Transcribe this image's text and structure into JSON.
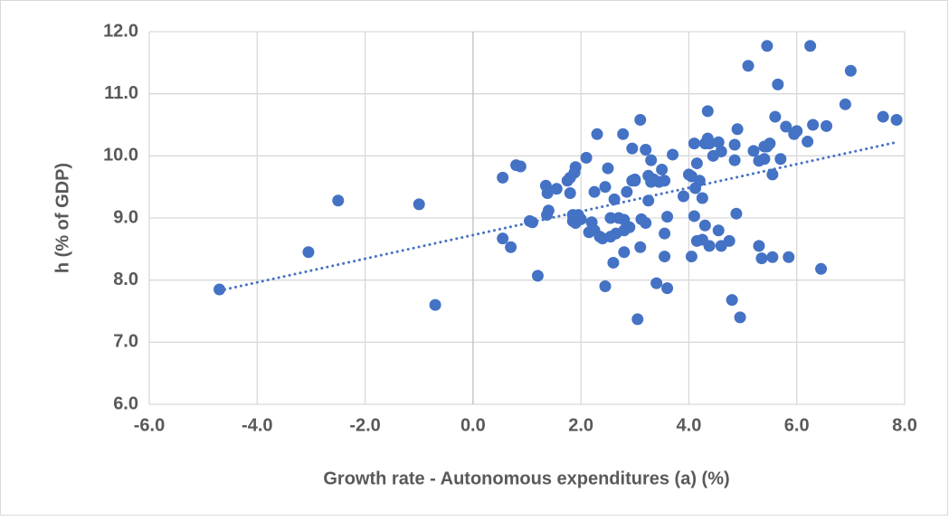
{
  "chart_data": {
    "type": "scatter",
    "x_label": "Growth rate - Autonomous expenditures (a) (%)",
    "y_label": "h (% of GDP)",
    "xlim": [
      -6,
      8
    ],
    "ylim": [
      6,
      12
    ],
    "xticks": [
      {
        "value": -6,
        "label": "-6.0"
      },
      {
        "value": -4,
        "label": "-4.0"
      },
      {
        "value": -2,
        "label": "-2.0"
      },
      {
        "value": 0,
        "label": "0.0"
      },
      {
        "value": 2,
        "label": "2.0"
      },
      {
        "value": 4,
        "label": "4.0"
      },
      {
        "value": 6,
        "label": "6.0"
      },
      {
        "value": 8,
        "label": "8.0"
      }
    ],
    "yticks": [
      {
        "value": 6,
        "label": "6.0"
      },
      {
        "value": 7,
        "label": "7.0"
      },
      {
        "value": 8,
        "label": "8.0"
      },
      {
        "value": 9,
        "label": "9.0"
      },
      {
        "value": 10,
        "label": "10.0"
      },
      {
        "value": 11,
        "label": "11.0"
      },
      {
        "value": 12,
        "label": "12.0"
      }
    ],
    "grid": true,
    "color": "#4472c4",
    "x": [
      -4.7,
      -3.05,
      -2.5,
      -1.0,
      -0.7,
      0.55,
      0.55,
      0.7,
      0.8,
      0.88,
      1.05,
      1.1,
      1.2,
      1.35,
      1.38,
      1.4,
      1.37,
      1.55,
      1.75,
      1.8,
      1.8,
      1.85,
      1.85,
      1.9,
      1.88,
      1.9,
      1.95,
      2.0,
      2.1,
      2.15,
      2.2,
      2.25,
      2.25,
      2.3,
      2.35,
      2.4,
      2.45,
      2.45,
      2.5,
      2.55,
      2.55,
      2.6,
      2.62,
      2.65,
      2.7,
      2.78,
      2.8,
      2.8,
      2.8,
      2.85,
      2.9,
      2.95,
      2.95,
      3.0,
      3.05,
      3.1,
      3.1,
      3.12,
      3.2,
      3.2,
      3.25,
      3.25,
      3.3,
      3.3,
      3.35,
      3.4,
      3.45,
      3.5,
      3.55,
      3.55,
      3.55,
      3.6,
      3.6,
      3.7,
      3.9,
      4.0,
      4.05,
      4.05,
      4.1,
      4.1,
      4.12,
      4.15,
      4.15,
      4.2,
      4.25,
      4.25,
      4.3,
      4.35,
      4.35,
      4.38,
      4.38,
      4.45,
      4.55,
      4.55,
      4.6,
      4.6,
      4.75,
      4.8,
      4.85,
      4.85,
      4.88,
      4.9,
      4.95,
      5.1,
      5.2,
      5.3,
      5.3,
      5.35,
      5.45,
      5.45,
      5.5,
      5.55,
      5.55,
      5.6,
      5.65,
      5.7,
      5.85,
      5.8,
      5.95,
      6.0,
      6.2,
      6.25,
      6.3,
      6.45,
      6.55,
      6.9,
      7.0,
      7.6,
      7.85,
      5.4,
      5.4,
      4.3,
      3.0
    ],
    "values": [
      7.85,
      8.45,
      9.28,
      9.22,
      7.6,
      9.65,
      8.67,
      8.53,
      9.85,
      9.83,
      8.95,
      8.93,
      8.07,
      9.52,
      9.4,
      9.12,
      9.05,
      9.47,
      9.6,
      9.65,
      9.4,
      9.05,
      8.95,
      9.82,
      9.73,
      8.92,
      9.05,
      8.98,
      9.97,
      8.77,
      8.93,
      9.42,
      8.8,
      10.35,
      8.7,
      8.67,
      9.5,
      7.9,
      9.8,
      8.7,
      9.0,
      8.28,
      9.3,
      8.75,
      9.0,
      10.35,
      8.45,
      8.8,
      8.97,
      9.42,
      8.85,
      10.12,
      9.6,
      9.62,
      7.37,
      8.53,
      10.58,
      8.98,
      10.1,
      8.92,
      9.28,
      9.68,
      9.93,
      9.58,
      9.62,
      7.95,
      9.58,
      9.78,
      8.38,
      9.6,
      8.75,
      7.87,
      9.02,
      10.02,
      9.35,
      9.7,
      8.38,
      9.67,
      9.03,
      10.2,
      9.48,
      9.88,
      8.63,
      9.6,
      8.65,
      9.32,
      8.88,
      10.72,
      10.28,
      10.2,
      8.55,
      10.0,
      8.8,
      10.22,
      10.07,
      8.55,
      8.63,
      7.68,
      9.93,
      10.18,
      9.07,
      10.43,
      7.4,
      11.45,
      10.08,
      8.55,
      9.92,
      8.35,
      10.15,
      11.77,
      10.2,
      9.7,
      8.37,
      10.63,
      11.15,
      9.95,
      8.37,
      10.47,
      10.35,
      10.4,
      10.23,
      11.77,
      10.5,
      8.18,
      10.48,
      10.83,
      11.37,
      10.63,
      10.58,
      9.95,
      10.15,
      10.2,
      9.6
    ],
    "trendline": {
      "x": [
        -4.7,
        7.85
      ],
      "values": [
        7.83,
        10.22
      ],
      "color": "#4472c4",
      "style": "dotted"
    }
  }
}
